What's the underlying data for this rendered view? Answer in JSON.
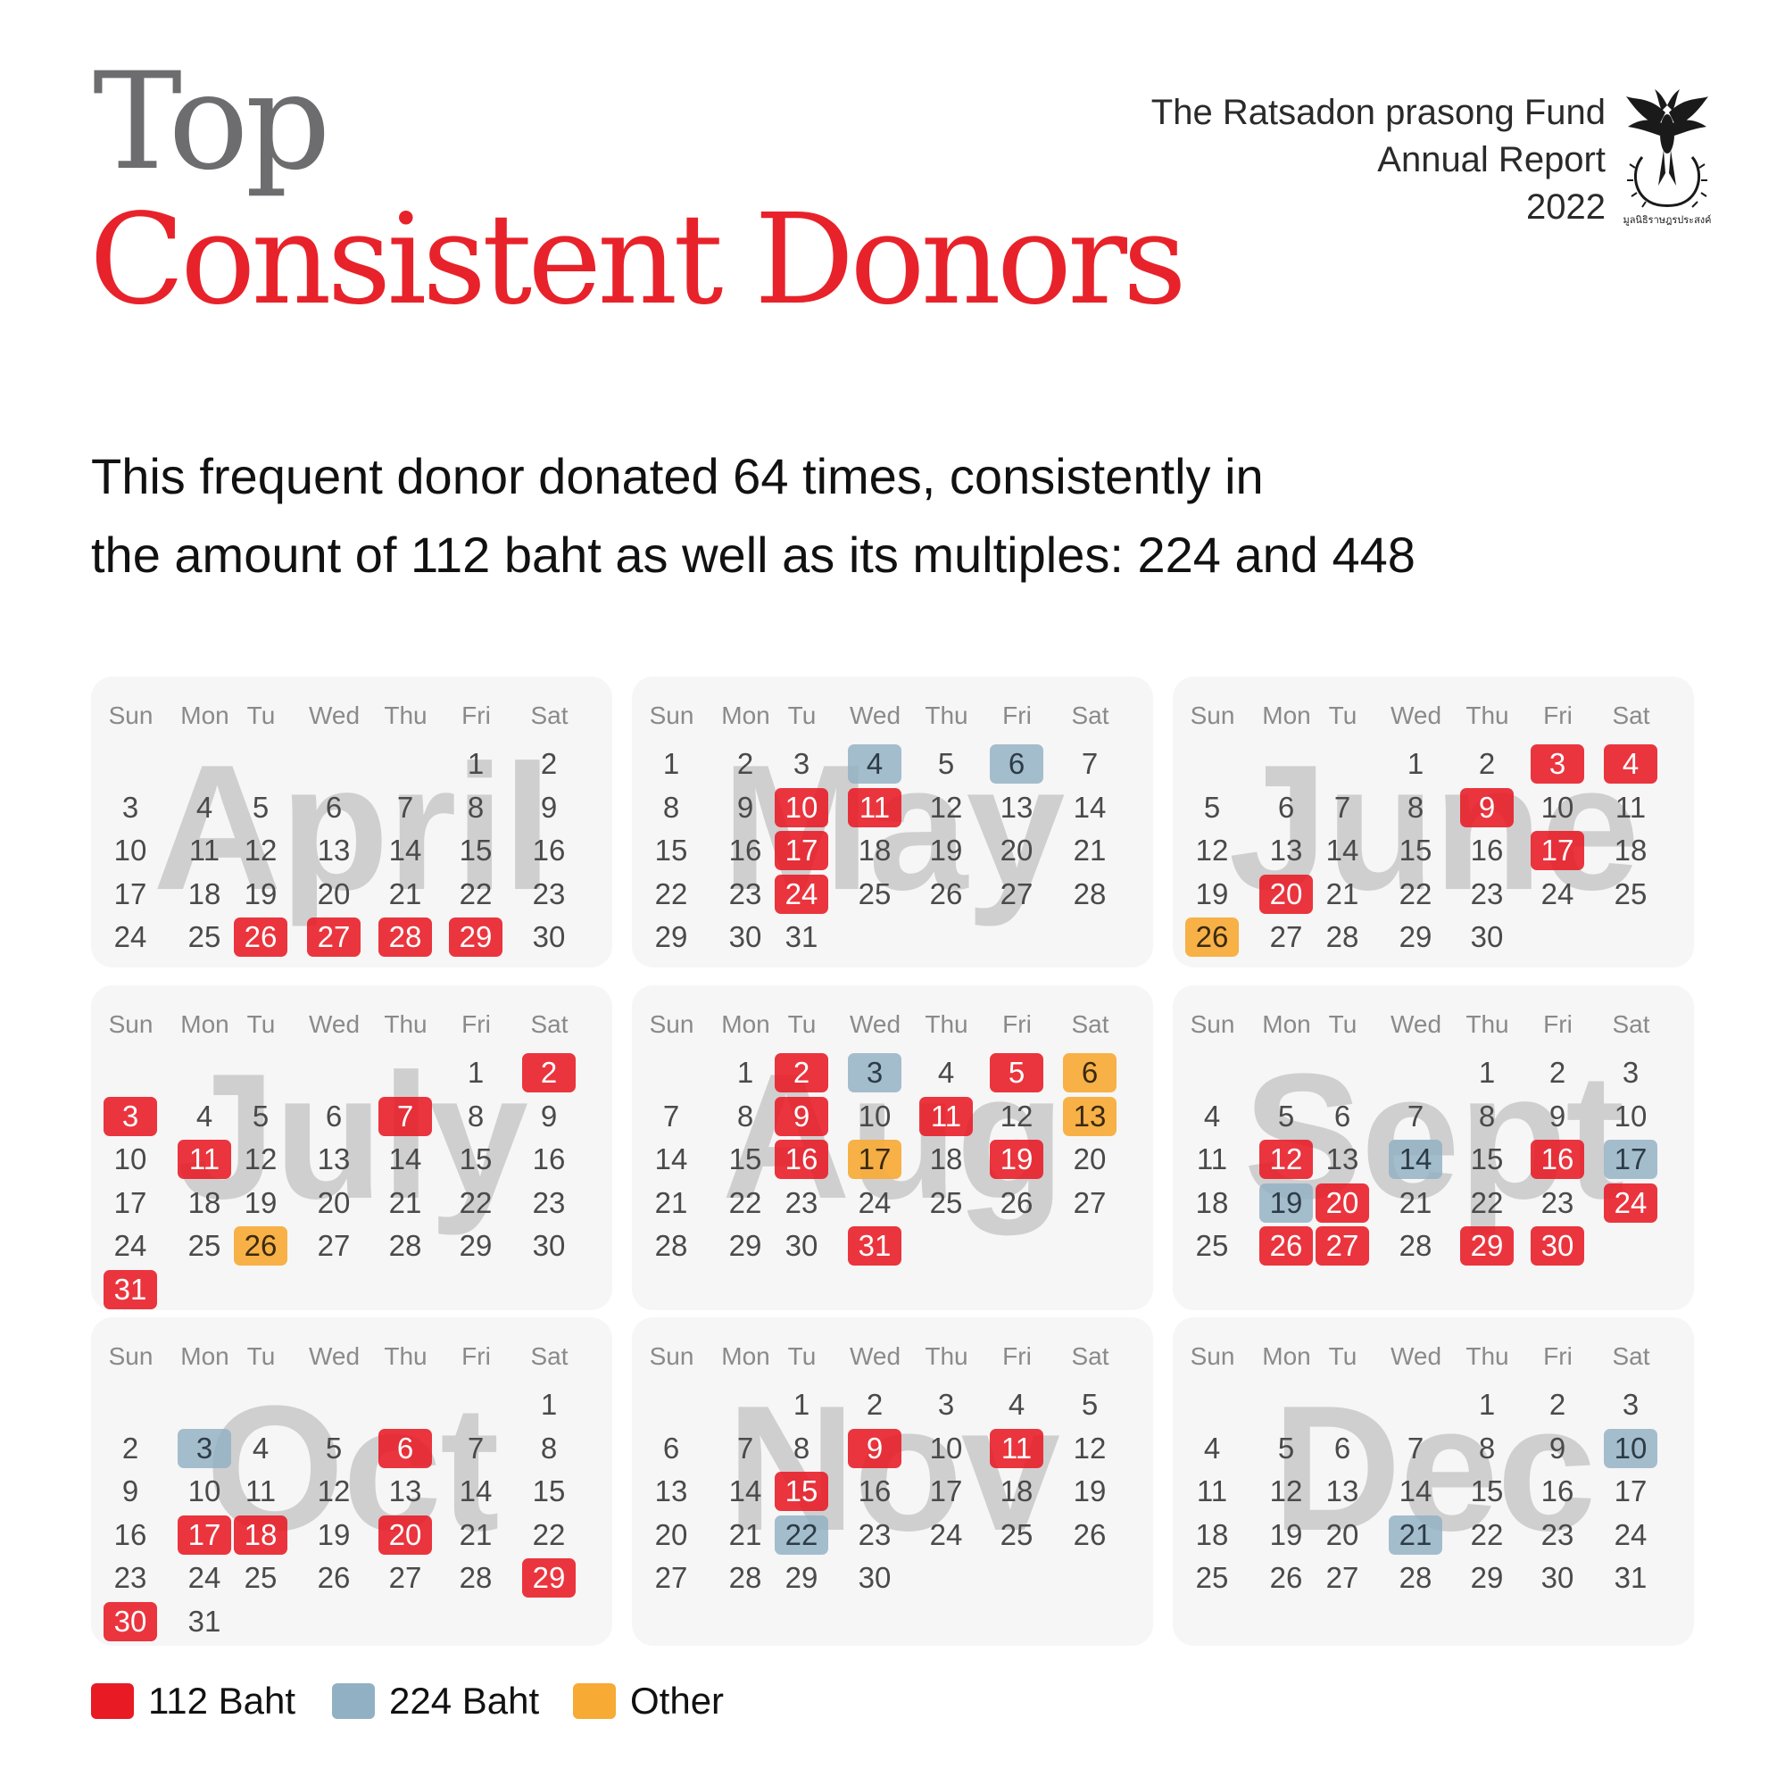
{
  "title": {
    "line1": "Top",
    "line2": "Consistent Donors"
  },
  "report": {
    "line1": "The Ratsadon prasong Fund",
    "line2": "Annual Report",
    "line3": "2022"
  },
  "logo": {
    "icon": "phoenix-emblem-icon",
    "caption": "มูลนิธิราษฎรประสงค์"
  },
  "subtitle": {
    "line1": "This frequent donor donated 64 times, consistently in",
    "line2": "the amount of 112 baht as well as its multiples: 224 and 448"
  },
  "colors": {
    "red": "#e81a24",
    "blue": "#91b0c3",
    "orange": "#f7aa34",
    "title_red": "#e8222a",
    "title_gray": "#6d6d70"
  },
  "weekdays": [
    "Sun",
    "Mon",
    "Tu",
    "Wed",
    "Thu",
    "Fri",
    "Sat"
  ],
  "legend": [
    {
      "label": "112 Baht",
      "color": "red"
    },
    {
      "label": "224 Baht",
      "color": "blue"
    },
    {
      "label": "Other",
      "color": "orange"
    }
  ],
  "months": [
    {
      "name": "April",
      "start": 5,
      "days": 30,
      "red": [
        26,
        27,
        28,
        29
      ],
      "blue": [],
      "orange": []
    },
    {
      "name": "May",
      "start": 0,
      "days": 31,
      "red": [
        10,
        11,
        17,
        24
      ],
      "blue": [
        4,
        6
      ],
      "orange": []
    },
    {
      "name": "June",
      "start": 3,
      "days": 30,
      "red": [
        3,
        4,
        9,
        17,
        20
      ],
      "blue": [],
      "orange": [
        26
      ]
    },
    {
      "name": "July",
      "start": 5,
      "days": 31,
      "red": [
        2,
        3,
        7,
        11,
        31
      ],
      "blue": [],
      "orange": [
        26
      ]
    },
    {
      "name": "Aug",
      "start": 1,
      "days": 31,
      "red": [
        2,
        5,
        9,
        11,
        16,
        19,
        31
      ],
      "blue": [
        3
      ],
      "orange": [
        6,
        13,
        17
      ]
    },
    {
      "name": "Sept",
      "start": 4,
      "days": 30,
      "red": [
        12,
        16,
        20,
        24,
        26,
        27,
        29,
        30
      ],
      "blue": [
        14,
        17,
        19
      ],
      "orange": []
    },
    {
      "name": "Oct",
      "start": 6,
      "days": 31,
      "red": [
        6,
        17,
        18,
        20,
        29,
        30
      ],
      "blue": [
        3
      ],
      "orange": []
    },
    {
      "name": "Nov",
      "start": 2,
      "days": 30,
      "red": [
        9,
        11,
        15
      ],
      "blue": [
        22
      ],
      "orange": []
    },
    {
      "name": "Dec",
      "start": 4,
      "days": 31,
      "red": [],
      "blue": [
        10,
        21
      ],
      "orange": []
    }
  ]
}
